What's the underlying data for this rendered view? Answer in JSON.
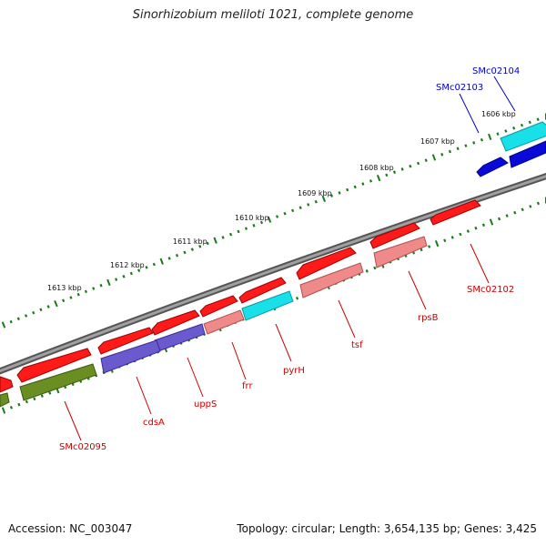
{
  "title": "Sinorhizobium meliloti 1021, complete genome",
  "footer": {
    "accession": "Accession: NC_003047",
    "summary": "Topology: circular; Length: 3,654,135 bp; Genes: 3,425"
  },
  "colors": {
    "backbone": "#8a8a8a",
    "tick": "#1a7a1a",
    "red_label": "#cc0000",
    "blue_label": "#0000cc",
    "gene_red": "#ff1a1a",
    "gene_pink": "#f08a8a",
    "gene_blue": "#0a0ad8",
    "gene_cyan": "#19dfe8",
    "gene_purple": "#6a5acd",
    "gene_olive": "#6b8e23"
  },
  "scale_labels": [
    "1606 kbp",
    "1607 kbp",
    "1608 kbp",
    "1609 kbp",
    "1610 kbp",
    "1611 kbp",
    "1612 kbp",
    "1613 kbp"
  ],
  "gene_labels": [
    "SMc02104",
    "SMc02103",
    "SMc02102",
    "rpsB",
    "tsf",
    "pyrH",
    "frr",
    "uppS",
    "cdsA",
    "SMc02095"
  ]
}
